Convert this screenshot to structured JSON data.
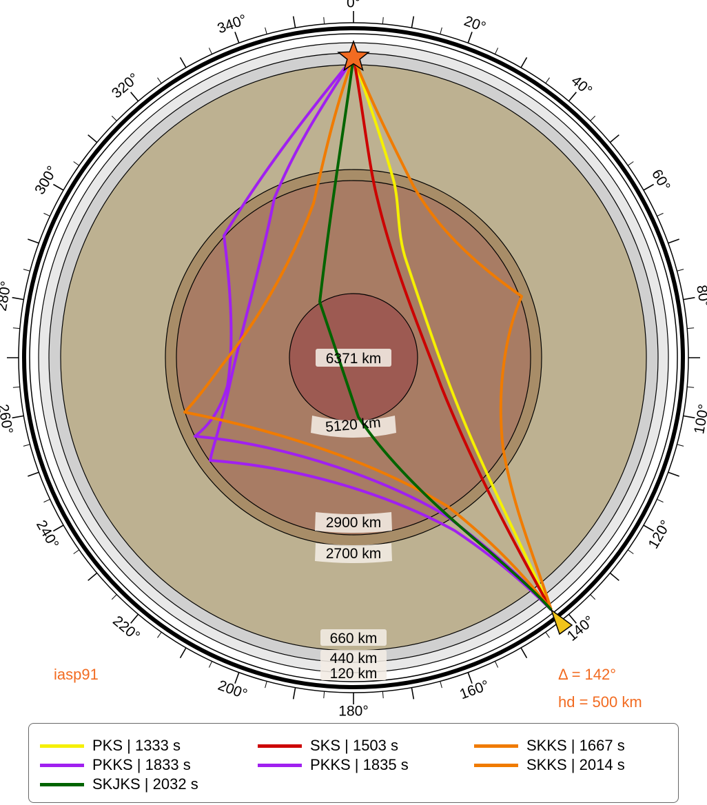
{
  "model": "iasp91",
  "distance_label": "Δ = 142°",
  "depth_label": "hd = 500 km",
  "angle_labels": [
    "0°",
    "20°",
    "40°",
    "60°",
    "80°",
    "100°",
    "120°",
    "140°",
    "160°",
    "180°",
    "200°",
    "220°",
    "240°",
    "260°",
    "280°",
    "300°",
    "320°",
    "340°"
  ],
  "layers": [
    {
      "label": "120 km",
      "color": "#e8e8e8"
    },
    {
      "label": "440 km",
      "color": "#d0d0d0"
    },
    {
      "label": "660 km",
      "color": "#bdb191"
    },
    {
      "label": "2700 km",
      "color": "#bdb191"
    },
    {
      "label": "2900 km",
      "color": "#a88d68"
    },
    {
      "label": "5120 km",
      "color": "#a87c64"
    },
    {
      "label": "6371 km",
      "color": "#9d5a52"
    }
  ],
  "source": {
    "type": "star",
    "color": "#f26b21"
  },
  "receiver": {
    "type": "triangle",
    "color": "#f2c41a"
  },
  "phases": [
    {
      "name": "PKS",
      "time": "1333 s",
      "label": "PKS | 1333 s",
      "color": "#f5f000"
    },
    {
      "name": "SKS",
      "time": "1503 s",
      "label": "SKS | 1503 s",
      "color": "#cc0000"
    },
    {
      "name": "SKKS",
      "time": "1667 s",
      "label": "SKKS | 1667 s",
      "color": "#f07b00"
    },
    {
      "name": "PKKS",
      "time": "1833 s",
      "label": "PKKS | 1833 s",
      "color": "#a020f0"
    },
    {
      "name": "PKKS",
      "time": "1835 s",
      "label": "PKKS | 1835 s",
      "color": "#a020f0"
    },
    {
      "name": "SKKS",
      "time": "2014 s",
      "label": "SKKS | 2014 s",
      "color": "#f07b00"
    },
    {
      "name": "SKJKS",
      "time": "2032 s",
      "label": "SKJKS | 2032 s",
      "color": "#006400"
    }
  ]
}
